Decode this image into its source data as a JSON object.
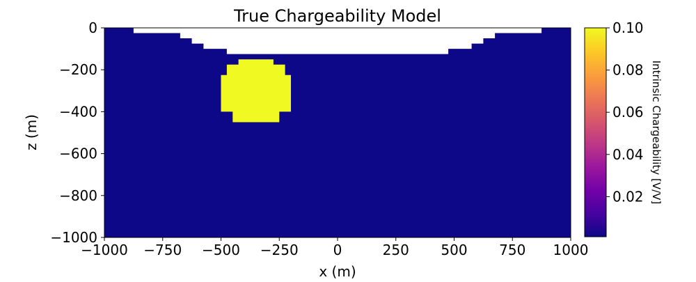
{
  "chart_data": {
    "type": "heatmap",
    "title": "True Chargeability Model",
    "xlabel": "x (m)",
    "ylabel": "z (m)",
    "xlim": [
      -1000,
      1000
    ],
    "ylim": [
      -1000,
      0
    ],
    "x_ticks": [
      -1000,
      -750,
      -500,
      -250,
      0,
      250,
      500,
      750,
      1000
    ],
    "x_tick_labels": [
      "−1000",
      "−750",
      "−500",
      "−250",
      "0",
      "250",
      "500",
      "750",
      "1000"
    ],
    "y_ticks": [
      0,
      -200,
      -400,
      -600,
      -800,
      -1000
    ],
    "y_tick_labels": [
      "0",
      "−200",
      "−400",
      "−600",
      "−800",
      "−1000"
    ],
    "background_value": 0.001,
    "background_color": "#0d0887",
    "air_color": "#ffffff",
    "air_region_x_z": [
      [
        -1000,
        0
      ],
      [
        -875,
        0
      ],
      [
        -875,
        -25
      ],
      [
        -675,
        -25
      ],
      [
        -675,
        -50
      ],
      [
        -625,
        -50
      ],
      [
        -625,
        -75
      ],
      [
        -575,
        -75
      ],
      [
        -575,
        -100
      ],
      [
        -475,
        -100
      ],
      [
        -475,
        -125
      ],
      [
        475,
        -125
      ],
      [
        475,
        -100
      ],
      [
        575,
        -100
      ],
      [
        575,
        -75
      ],
      [
        625,
        -75
      ],
      [
        625,
        -50
      ],
      [
        675,
        -50
      ],
      [
        675,
        -25
      ],
      [
        875,
        -25
      ],
      [
        875,
        0
      ],
      [
        1000,
        0
      ]
    ],
    "anomaly": {
      "shape": "sphere",
      "center_x": -350,
      "center_z": -300,
      "radius": 150,
      "value": 0.1,
      "color": "#f0f921",
      "outline_x_z": [
        [
          -425,
          -150
        ],
        [
          -275,
          -150
        ],
        [
          -275,
          -175
        ],
        [
          -225,
          -175
        ],
        [
          -225,
          -225
        ],
        [
          -200,
          -225
        ],
        [
          -200,
          -400
        ],
        [
          -250,
          -400
        ],
        [
          -250,
          -450
        ],
        [
          -450,
          -450
        ],
        [
          -450,
          -400
        ],
        [
          -500,
          -400
        ],
        [
          -500,
          -225
        ],
        [
          -475,
          -225
        ],
        [
          -475,
          -175
        ],
        [
          -425,
          -175
        ]
      ]
    },
    "colorbar": {
      "label": "Intrinsic Chargeability [V/V]",
      "colormap": "plasma",
      "range": [
        0.001,
        0.1
      ],
      "ticks": [
        0.02,
        0.04,
        0.06,
        0.08,
        0.1
      ],
      "tick_labels": [
        "0.02",
        "0.04",
        "0.06",
        "0.08",
        "0.10"
      ],
      "stops": [
        "#0d0887",
        "#46039f",
        "#7201a8",
        "#9c179e",
        "#bd3786",
        "#d8576b",
        "#ed7953",
        "#fb9f3a",
        "#fdca26",
        "#f0f921"
      ]
    }
  }
}
